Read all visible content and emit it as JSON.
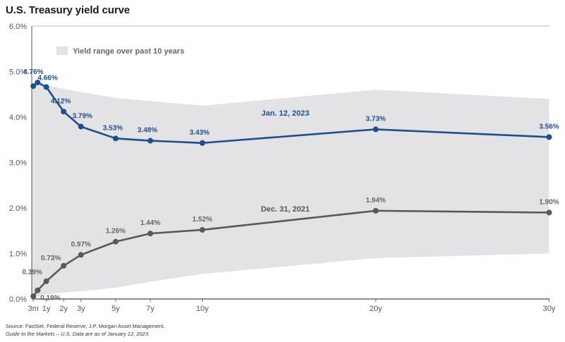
{
  "title": "U.S. Treasury yield curve",
  "footnotes": [
    "Source: FactSet, Federal Reserve, J.P. Morgan Asset Management.",
    "Guide to the Markets – U.S. Data are as of January 12, 2023."
  ],
  "colors": {
    "jan2023": "#1f4e8c",
    "dec2021": "#595959",
    "range_band": "#e3e3e5"
  },
  "chart_data": {
    "type": "line",
    "title": "U.S. Treasury yield curve",
    "xlabel": "",
    "ylabel": "",
    "ylim": [
      0,
      6
    ],
    "yticks": [
      "0.0%",
      "1.0%",
      "2.0%",
      "3.0%",
      "4.0%",
      "5.0%",
      "6.0%"
    ],
    "ytick_values": [
      0,
      1,
      2,
      3,
      4,
      5,
      6
    ],
    "x_maturity_years": [
      0.25,
      0.5,
      1,
      2,
      3,
      5,
      7,
      10,
      20,
      30
    ],
    "xtick_labels": [
      {
        "label": "3m",
        "years": 0.25
      },
      {
        "label": "1y",
        "years": 1
      },
      {
        "label": "2y",
        "years": 2
      },
      {
        "label": "3y",
        "years": 3
      },
      {
        "label": "5y",
        "years": 5
      },
      {
        "label": "7y",
        "years": 7
      },
      {
        "label": "10y",
        "years": 10
      },
      {
        "label": "20y",
        "years": 20
      },
      {
        "label": "30y",
        "years": 30
      }
    ],
    "grid": false,
    "legend": {
      "label": "Yield range over past 10 years",
      "placement": "top-left"
    },
    "series": [
      {
        "name": "Jan. 12, 2023",
        "values": [
          4.68,
          4.76,
          4.66,
          4.12,
          3.79,
          3.53,
          3.48,
          3.43,
          3.73,
          3.56
        ],
        "labels": [
          "",
          "4.76%",
          "4.66%",
          "4.12%",
          "3.79%",
          "3.53%",
          "3.48%",
          "3.43%",
          "3.73%",
          "3.56%"
        ]
      },
      {
        "name": "Dec. 31, 2021",
        "values": [
          0.06,
          0.19,
          0.39,
          0.73,
          0.97,
          1.26,
          1.44,
          1.52,
          1.94,
          1.9
        ],
        "labels": [
          "",
          "0.19%",
          "0.39%",
          "0.73%",
          "0.97%",
          "1.26%",
          "1.44%",
          "1.52%",
          "1.94%",
          "1.90%"
        ]
      }
    ],
    "range_band": {
      "name": "Yield range over past 10 years",
      "x_years": [
        0.25,
        1,
        2,
        3,
        5,
        7,
        10,
        20,
        30
      ],
      "upper": [
        4.7,
        4.7,
        4.62,
        4.55,
        4.42,
        4.35,
        4.25,
        4.6,
        4.4
      ],
      "lower": [
        0.02,
        0.1,
        0.14,
        0.17,
        0.25,
        0.38,
        0.55,
        0.9,
        1.0
      ]
    }
  }
}
